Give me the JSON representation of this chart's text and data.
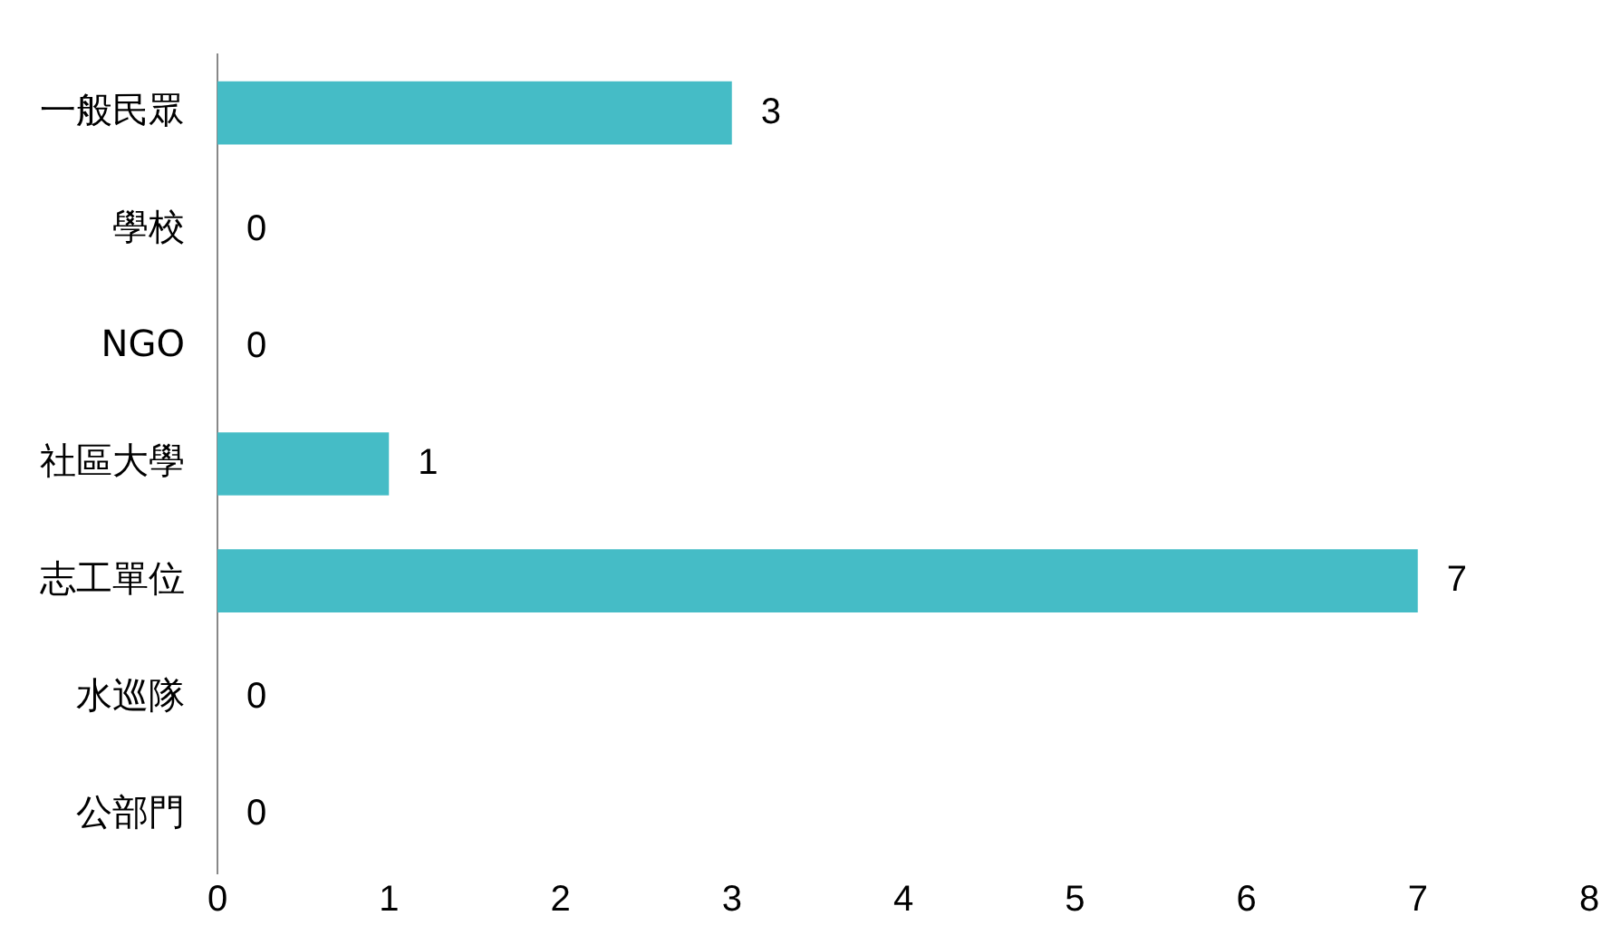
{
  "chart_data": {
    "type": "bar",
    "orientation": "horizontal",
    "categories": [
      "一般民眾",
      "學校",
      "NGO",
      "社區大學",
      "志工單位",
      "水巡隊",
      "公部門"
    ],
    "values": [
      3,
      0,
      0,
      1,
      7,
      0,
      0
    ],
    "color": "#45bcc6",
    "xlim": [
      0,
      8
    ],
    "xticks": [
      0,
      1,
      2,
      3,
      4,
      5,
      6,
      7,
      8
    ],
    "grid": false,
    "legend": false,
    "data_labels": true
  }
}
